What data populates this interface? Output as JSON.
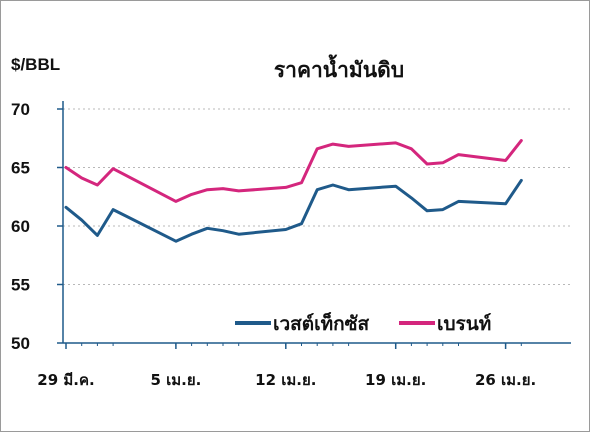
{
  "colors": {
    "wti": "#1f5a8a",
    "brent": "#d4267d",
    "grid": "#b8b8b8",
    "axis": "#1f5a8a",
    "text": "#111111"
  },
  "chart_data": {
    "type": "line",
    "title": "ราคาน้ำมันดิบ",
    "ylabel": "$/BBL",
    "ylim": [
      50,
      70
    ],
    "yticks": [
      50,
      55,
      60,
      65,
      70
    ],
    "grid": true,
    "grid_style": "dotted horizontal",
    "legend_position": "bottom-right",
    "x": [
      "29 มี.ค.",
      "30 มี.ค.",
      "31 มี.ค.",
      "1 เม.ย.",
      "5 เม.ย.",
      "6 เม.ย.",
      "7 เม.ย.",
      "8 เม.ย.",
      "9 เม.ย.",
      "12 เม.ย.",
      "13 เม.ย.",
      "14 เม.ย.",
      "15 เม.ย.",
      "16 เม.ย.",
      "19 เม.ย.",
      "20 เม.ย.",
      "21 เม.ย.",
      "22 เม.ย.",
      "23 เม.ย.",
      "26 เม.ย.",
      "27 เม.ย."
    ],
    "xtick_labels": [
      "29 มี.ค.",
      "5 เม.ย.",
      "12 เม.ย.",
      "19 เม.ย.",
      "26 เม.ย."
    ],
    "series": [
      {
        "name": "เวสต์เท็กซัส",
        "color_key": "wti",
        "dates": [
          "2021-03-29",
          "2021-03-30",
          "2021-03-31",
          "2021-04-01",
          "2021-04-05",
          "2021-04-06",
          "2021-04-07",
          "2021-04-08",
          "2021-04-09",
          "2021-04-12",
          "2021-04-13",
          "2021-04-14",
          "2021-04-15",
          "2021-04-16",
          "2021-04-19",
          "2021-04-20",
          "2021-04-21",
          "2021-04-22",
          "2021-04-23",
          "2021-04-26",
          "2021-04-27"
        ],
        "values": [
          61.6,
          60.5,
          59.2,
          61.4,
          58.7,
          59.3,
          59.8,
          59.6,
          59.3,
          59.7,
          60.2,
          63.1,
          63.5,
          63.1,
          63.4,
          62.4,
          61.3,
          61.4,
          62.1,
          61.9,
          63.9
        ]
      },
      {
        "name": "เบรนท์",
        "color_key": "brent",
        "dates": [
          "2021-03-29",
          "2021-03-30",
          "2021-03-31",
          "2021-04-01",
          "2021-04-05",
          "2021-04-06",
          "2021-04-07",
          "2021-04-08",
          "2021-04-09",
          "2021-04-12",
          "2021-04-13",
          "2021-04-14",
          "2021-04-15",
          "2021-04-16",
          "2021-04-19",
          "2021-04-20",
          "2021-04-21",
          "2021-04-22",
          "2021-04-23",
          "2021-04-26",
          "2021-04-27"
        ],
        "values": [
          65.0,
          64.1,
          63.5,
          64.9,
          62.1,
          62.7,
          63.1,
          63.2,
          63.0,
          63.3,
          63.7,
          66.6,
          67.0,
          66.8,
          67.1,
          66.6,
          65.3,
          65.4,
          66.1,
          65.6,
          67.3
        ]
      }
    ]
  }
}
